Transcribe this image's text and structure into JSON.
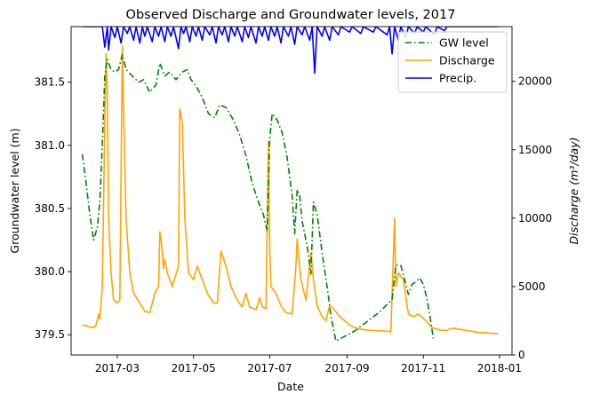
{
  "chart_data": {
    "type": "line",
    "title": "Observed Discharge and Groundwater levels, 2017",
    "xlabel": "Date",
    "ylabel_left": "Groundwater level (m)",
    "ylabel_right": "Discharge (m³/day)",
    "xlim": [
      "2017-01-23",
      "2018-01-11"
    ],
    "x_ticks": [
      "2017-03",
      "2017-05",
      "2017-07",
      "2017-09",
      "2017-11",
      "2018-01"
    ],
    "ylim_left": [
      379.34,
      381.94
    ],
    "y_ticks_left": [
      "379.5",
      "380.0",
      "380.5",
      "381.0",
      "381.5"
    ],
    "ylim_right": [
      0,
      24000
    ],
    "y_ticks_right": [
      "0",
      "5000",
      "10000",
      "15000",
      "20000"
    ],
    "grid": false,
    "legend_position": "top-right",
    "legend": [
      "GW level",
      "Discharge",
      "Precip."
    ],
    "series": [
      {
        "name": "GW level",
        "axis": "left",
        "color": "#008000",
        "style": "dashdot",
        "points": [
          [
            "2017-02-01",
            380.93
          ],
          [
            "2017-02-04",
            380.7
          ],
          [
            "2017-02-07",
            380.45
          ],
          [
            "2017-02-10",
            380.25
          ],
          [
            "2017-02-13",
            380.35
          ],
          [
            "2017-02-15",
            380.55
          ],
          [
            "2017-02-17",
            381.0
          ],
          [
            "2017-02-19",
            381.55
          ],
          [
            "2017-02-21",
            381.68
          ],
          [
            "2017-02-24",
            381.6
          ],
          [
            "2017-02-27",
            381.58
          ],
          [
            "2017-03-02",
            381.6
          ],
          [
            "2017-03-05",
            381.72
          ],
          [
            "2017-03-08",
            381.6
          ],
          [
            "2017-03-13",
            381.55
          ],
          [
            "2017-03-18",
            381.5
          ],
          [
            "2017-03-22",
            381.52
          ],
          [
            "2017-03-27",
            381.42
          ],
          [
            "2017-04-01",
            381.48
          ],
          [
            "2017-04-04",
            381.65
          ],
          [
            "2017-04-08",
            381.55
          ],
          [
            "2017-04-12",
            381.58
          ],
          [
            "2017-04-17",
            381.52
          ],
          [
            "2017-04-22",
            381.58
          ],
          [
            "2017-04-26",
            381.6
          ],
          [
            "2017-04-29",
            381.52
          ],
          [
            "2017-05-03",
            381.47
          ],
          [
            "2017-05-08",
            381.38
          ],
          [
            "2017-05-13",
            381.25
          ],
          [
            "2017-05-18",
            381.22
          ],
          [
            "2017-05-22",
            381.32
          ],
          [
            "2017-05-27",
            381.3
          ],
          [
            "2017-06-02",
            381.2
          ],
          [
            "2017-06-07",
            381.08
          ],
          [
            "2017-06-12",
            380.92
          ],
          [
            "2017-06-17",
            380.7
          ],
          [
            "2017-06-22",
            380.55
          ],
          [
            "2017-06-26",
            380.45
          ],
          [
            "2017-06-29",
            380.32
          ],
          [
            "2017-07-01",
            381.05
          ],
          [
            "2017-07-03",
            381.25
          ],
          [
            "2017-07-07",
            381.2
          ],
          [
            "2017-07-11",
            381.1
          ],
          [
            "2017-07-15",
            380.9
          ],
          [
            "2017-07-19",
            380.6
          ],
          [
            "2017-07-21",
            380.3
          ],
          [
            "2017-07-23",
            380.65
          ],
          [
            "2017-07-25",
            380.6
          ],
          [
            "2017-07-27",
            380.4
          ],
          [
            "2017-07-31",
            380.2
          ],
          [
            "2017-08-03",
            379.98
          ],
          [
            "2017-08-05",
            380.55
          ],
          [
            "2017-08-08",
            380.45
          ],
          [
            "2017-08-12",
            380.15
          ],
          [
            "2017-08-16",
            379.88
          ],
          [
            "2017-08-19",
            379.65
          ],
          [
            "2017-08-23",
            379.45
          ],
          [
            "2017-09-07",
            379.53
          ],
          [
            "2017-09-27",
            379.68
          ],
          [
            "2017-10-07",
            379.78
          ],
          [
            "2017-10-10",
            380.05
          ],
          [
            "2017-10-14",
            380.05
          ],
          [
            "2017-10-18",
            379.9
          ],
          [
            "2017-10-20",
            379.82
          ],
          [
            "2017-10-23",
            379.9
          ],
          [
            "2017-10-26",
            379.92
          ],
          [
            "2017-10-29",
            379.95
          ],
          [
            "2017-11-01",
            379.9
          ],
          [
            "2017-11-04",
            379.78
          ],
          [
            "2017-11-07",
            379.6
          ],
          [
            "2017-11-09",
            379.47
          ]
        ]
      },
      {
        "name": "Discharge",
        "axis": "right",
        "color": "#FFA500",
        "style": "solid",
        "points": [
          [
            "2017-02-01",
            2200
          ],
          [
            "2017-02-04",
            2150
          ],
          [
            "2017-02-07",
            2050
          ],
          [
            "2017-02-10",
            2000
          ],
          [
            "2017-02-12",
            2200
          ],
          [
            "2017-02-14",
            3000
          ],
          [
            "2017-02-15",
            2600
          ],
          [
            "2017-02-17",
            5000
          ],
          [
            "2017-02-19",
            17000
          ],
          [
            "2017-02-20",
            22000
          ],
          [
            "2017-02-21",
            19000
          ],
          [
            "2017-02-22",
            10000
          ],
          [
            "2017-02-24",
            6000
          ],
          [
            "2017-02-26",
            4000
          ],
          [
            "2017-03-01",
            3800
          ],
          [
            "2017-03-03",
            4000
          ],
          [
            "2017-03-05",
            22600
          ],
          [
            "2017-03-06",
            18000
          ],
          [
            "2017-03-08",
            10000
          ],
          [
            "2017-03-11",
            6000
          ],
          [
            "2017-03-14",
            4500
          ],
          [
            "2017-03-19",
            3800
          ],
          [
            "2017-03-23",
            3200
          ],
          [
            "2017-03-27",
            3100
          ],
          [
            "2017-03-31",
            4500
          ],
          [
            "2017-04-03",
            5000
          ],
          [
            "2017-04-04",
            9000
          ],
          [
            "2017-04-05",
            8500
          ],
          [
            "2017-04-07",
            6300
          ],
          [
            "2017-04-08",
            7000
          ],
          [
            "2017-04-10",
            6000
          ],
          [
            "2017-04-14",
            5000
          ],
          [
            "2017-04-19",
            6500
          ],
          [
            "2017-04-20",
            18000
          ],
          [
            "2017-04-22",
            17000
          ],
          [
            "2017-04-24",
            10000
          ],
          [
            "2017-04-27",
            6000
          ],
          [
            "2017-05-01",
            5500
          ],
          [
            "2017-05-04",
            6500
          ],
          [
            "2017-05-08",
            5500
          ],
          [
            "2017-05-12",
            4500
          ],
          [
            "2017-05-17",
            3800
          ],
          [
            "2017-05-20",
            3800
          ],
          [
            "2017-05-23",
            7600
          ],
          [
            "2017-05-27",
            6500
          ],
          [
            "2017-05-31",
            5000
          ],
          [
            "2017-06-05",
            4000
          ],
          [
            "2017-06-09",
            3500
          ],
          [
            "2017-06-12",
            4500
          ],
          [
            "2017-06-15",
            3500
          ],
          [
            "2017-06-20",
            3300
          ],
          [
            "2017-06-23",
            4200
          ],
          [
            "2017-06-25",
            3500
          ],
          [
            "2017-06-28",
            3400
          ],
          [
            "2017-06-30",
            15600
          ],
          [
            "2017-07-01",
            8000
          ],
          [
            "2017-07-02",
            5000
          ],
          [
            "2017-07-06",
            4500
          ],
          [
            "2017-07-10",
            3600
          ],
          [
            "2017-07-14",
            3100
          ],
          [
            "2017-07-19",
            3000
          ],
          [
            "2017-07-22",
            6500
          ],
          [
            "2017-07-23",
            8500
          ],
          [
            "2017-07-26",
            5500
          ],
          [
            "2017-07-30",
            4000
          ],
          [
            "2017-08-03",
            7500
          ],
          [
            "2017-08-05",
            5500
          ],
          [
            "2017-08-08",
            3600
          ],
          [
            "2017-08-12",
            2800
          ],
          [
            "2017-08-15",
            2500
          ],
          [
            "2017-08-18",
            3600
          ],
          [
            "2017-08-21",
            3400
          ],
          [
            "2017-08-26",
            2800
          ],
          [
            "2017-09-03",
            2200
          ],
          [
            "2017-09-10",
            1900
          ],
          [
            "2017-09-20",
            1800
          ],
          [
            "2017-09-30",
            1750
          ],
          [
            "2017-10-06",
            1700
          ],
          [
            "2017-10-09",
            10000
          ],
          [
            "2017-10-10",
            5000
          ],
          [
            "2017-10-12",
            6000
          ],
          [
            "2017-10-16",
            5500
          ],
          [
            "2017-10-20",
            3000
          ],
          [
            "2017-10-24",
            2800
          ],
          [
            "2017-10-28",
            3000
          ],
          [
            "2017-11-02",
            2600
          ],
          [
            "2017-11-08",
            2000
          ],
          [
            "2017-11-15",
            1800
          ],
          [
            "2017-11-20",
            1800
          ],
          [
            "2017-11-22",
            1900
          ],
          [
            "2017-11-25",
            1950
          ],
          [
            "2017-12-05",
            1800
          ],
          [
            "2017-12-15",
            1650
          ],
          [
            "2017-12-31",
            1550
          ]
        ]
      },
      {
        "name": "Precip.",
        "axis": "right",
        "color": "#0000FF",
        "style": "solid",
        "points": [
          [
            "2017-02-01",
            24000
          ],
          [
            "2017-02-17",
            24000
          ],
          [
            "2017-02-19",
            22500
          ],
          [
            "2017-02-21",
            24000
          ],
          [
            "2017-02-22",
            22300
          ],
          [
            "2017-02-24",
            24000
          ],
          [
            "2017-02-27",
            23200
          ],
          [
            "2017-03-01",
            24000
          ],
          [
            "2017-03-04",
            22800
          ],
          [
            "2017-03-06",
            24000
          ],
          [
            "2017-03-09",
            23500
          ],
          [
            "2017-03-11",
            24000
          ],
          [
            "2017-03-14",
            23000
          ],
          [
            "2017-03-16",
            24000
          ],
          [
            "2017-03-19",
            22800
          ],
          [
            "2017-03-21",
            24000
          ],
          [
            "2017-03-23",
            23300
          ],
          [
            "2017-03-25",
            24000
          ],
          [
            "2017-03-29",
            22900
          ],
          [
            "2017-03-31",
            24000
          ],
          [
            "2017-04-03",
            23300
          ],
          [
            "2017-04-05",
            24000
          ],
          [
            "2017-04-08",
            22900
          ],
          [
            "2017-04-10",
            24000
          ],
          [
            "2017-04-13",
            23300
          ],
          [
            "2017-04-15",
            24000
          ],
          [
            "2017-04-19",
            22400
          ],
          [
            "2017-04-21",
            24000
          ],
          [
            "2017-04-23",
            23500
          ],
          [
            "2017-04-25",
            24000
          ],
          [
            "2017-04-28",
            22900
          ],
          [
            "2017-04-30",
            24000
          ],
          [
            "2017-05-03",
            23300
          ],
          [
            "2017-05-05",
            24000
          ],
          [
            "2017-05-08",
            23000
          ],
          [
            "2017-05-10",
            24000
          ],
          [
            "2017-05-14",
            23400
          ],
          [
            "2017-05-16",
            24000
          ],
          [
            "2017-05-19",
            22800
          ],
          [
            "2017-05-21",
            24000
          ],
          [
            "2017-05-24",
            23400
          ],
          [
            "2017-05-26",
            24000
          ],
          [
            "2017-05-29",
            22900
          ],
          [
            "2017-05-31",
            24000
          ],
          [
            "2017-06-03",
            23300
          ],
          [
            "2017-06-05",
            24000
          ],
          [
            "2017-06-09",
            22900
          ],
          [
            "2017-06-11",
            24000
          ],
          [
            "2017-06-14",
            23200
          ],
          [
            "2017-06-16",
            24000
          ],
          [
            "2017-06-20",
            22800
          ],
          [
            "2017-06-22",
            24000
          ],
          [
            "2017-06-25",
            23300
          ],
          [
            "2017-06-27",
            24000
          ],
          [
            "2017-06-30",
            23000
          ],
          [
            "2017-07-02",
            24000
          ],
          [
            "2017-07-05",
            23300
          ],
          [
            "2017-07-07",
            24000
          ],
          [
            "2017-07-10",
            22800
          ],
          [
            "2017-07-12",
            24000
          ],
          [
            "2017-07-16",
            23300
          ],
          [
            "2017-07-18",
            24000
          ],
          [
            "2017-07-21",
            22700
          ],
          [
            "2017-07-23",
            24000
          ],
          [
            "2017-07-27",
            23400
          ],
          [
            "2017-07-29",
            24000
          ],
          [
            "2017-08-02",
            23000
          ],
          [
            "2017-08-04",
            24000
          ],
          [
            "2017-08-06",
            20600
          ],
          [
            "2017-08-08",
            24000
          ],
          [
            "2017-08-12",
            23300
          ],
          [
            "2017-08-14",
            24000
          ],
          [
            "2017-08-18",
            23000
          ],
          [
            "2017-08-20",
            24000
          ],
          [
            "2017-08-25",
            23400
          ],
          [
            "2017-08-27",
            24000
          ],
          [
            "2017-09-03",
            23600
          ],
          [
            "2017-09-05",
            24000
          ],
          [
            "2017-09-12",
            23500
          ],
          [
            "2017-09-14",
            24000
          ],
          [
            "2017-09-22",
            23600
          ],
          [
            "2017-09-24",
            24000
          ],
          [
            "2017-10-03",
            23400
          ],
          [
            "2017-10-05",
            24000
          ],
          [
            "2017-10-07",
            22000
          ],
          [
            "2017-10-09",
            24000
          ],
          [
            "2017-10-12",
            23000
          ],
          [
            "2017-10-14",
            24000
          ],
          [
            "2017-10-18",
            23200
          ],
          [
            "2017-10-20",
            24000
          ],
          [
            "2017-10-25",
            23500
          ],
          [
            "2017-10-27",
            24000
          ],
          [
            "2017-11-01",
            23600
          ],
          [
            "2017-11-03",
            24000
          ],
          [
            "2017-11-10",
            23400
          ],
          [
            "2017-11-12",
            24000
          ],
          [
            "2017-11-18",
            23700
          ],
          [
            "2017-11-20",
            24000
          ],
          [
            "2017-12-31",
            24000
          ]
        ]
      }
    ]
  }
}
